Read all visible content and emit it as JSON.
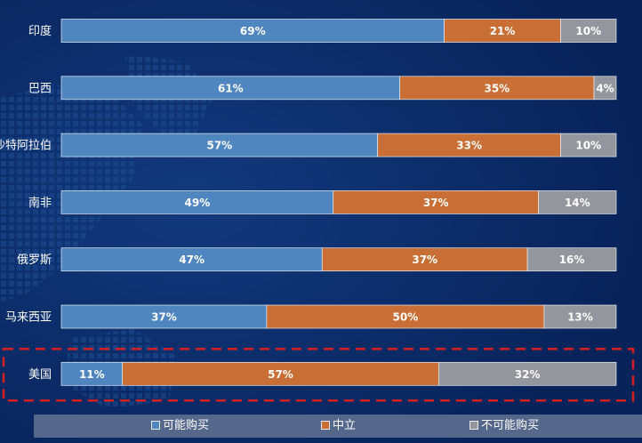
{
  "chart_data": {
    "type": "bar",
    "orientation": "horizontal",
    "stacked": true,
    "categories": [
      "印度",
      "巴西",
      "沙特阿拉伯",
      "南非",
      "俄罗斯",
      "马来西亚",
      "美国"
    ],
    "series": [
      {
        "name": "可能购买",
        "color": "#4f86c0",
        "values": [
          69,
          61,
          57,
          49,
          47,
          37,
          11
        ]
      },
      {
        "name": "中立",
        "color": "#c96f35",
        "values": [
          21,
          35,
          33,
          37,
          37,
          50,
          57
        ]
      },
      {
        "name": "不可能购买",
        "color": "#93969c",
        "values": [
          10,
          4,
          10,
          14,
          16,
          13,
          32
        ]
      }
    ],
    "value_suffix": "%",
    "xlim": [
      0,
      100
    ],
    "highlighted_category": "美国",
    "highlight_color": "#d42020",
    "legend_position": "bottom"
  }
}
